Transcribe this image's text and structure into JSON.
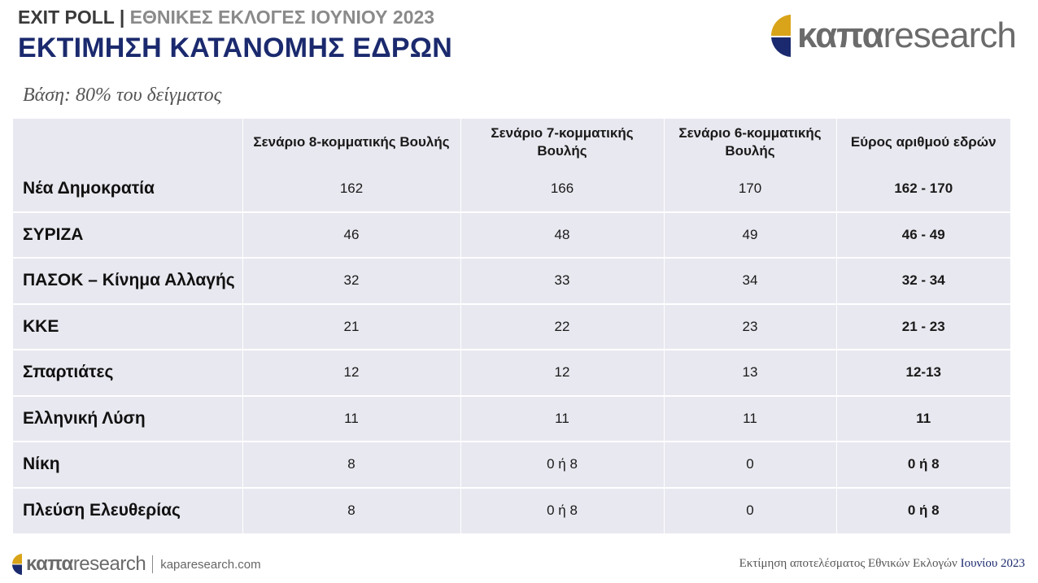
{
  "header": {
    "exit_poll": "EXIT POLL",
    "separator": "|",
    "subtitle": "ΕΘΝΙΚΕΣ ΕΚΛΟΓΕΣ ΙΟΥΝΙΟΥ 2023",
    "title": "ΕΚΤΙΜΗΣΗ ΚΑΤΑΝΟΜΗΣ ΕΔΡΩΝ"
  },
  "logo": {
    "bold": "καπα",
    "light": "research"
  },
  "base_note": "Βάση: 80% του δείγματος",
  "table": {
    "headers": [
      "",
      "Σενάριο 8-κομματικής Βουλής",
      "Σενάριο 7-κομματικής Βουλής",
      "Σενάριο 6-κομματικής Βουλής",
      "Εύρος αριθμού εδρών"
    ],
    "rows": [
      {
        "party": "Νέα Δημοκρατία",
        "s8": "162",
        "s7": "166",
        "s6": "170",
        "range": "162 - 170"
      },
      {
        "party": "ΣΥΡΙΖΑ",
        "s8": "46",
        "s7": "48",
        "s6": "49",
        "range": "46 - 49"
      },
      {
        "party": "ΠΑΣΟΚ – Κίνημα Αλλαγής",
        "s8": "32",
        "s7": "33",
        "s6": "34",
        "range": "32 - 34"
      },
      {
        "party": "ΚΚΕ",
        "s8": "21",
        "s7": "22",
        "s6": "23",
        "range": "21 - 23"
      },
      {
        "party": "Σπαρτιάτες",
        "s8": "12",
        "s7": "12",
        "s6": "13",
        "range": "12-13"
      },
      {
        "party": "Ελληνική Λύση",
        "s8": "11",
        "s7": "11",
        "s6": "11",
        "range": "11"
      },
      {
        "party": "Νίκη",
        "s8": "8",
        "s7": "0 ή 8",
        "s6": "0",
        "range": "0 ή 8"
      },
      {
        "party": "Πλεύση Ελευθερίας",
        "s8": "8",
        "s7": "0 ή 8",
        "s6": "0",
        "range": "0 ή 8"
      }
    ]
  },
  "footer": {
    "logo_bold": "καπα",
    "logo_light": "research",
    "separator": "|",
    "url": "kaparesearch.com",
    "caption": "Εκτίμηση αποτελέσματος Εθνικών Εκλογών",
    "caption_date": "Ιουνίου 2023"
  },
  "colors": {
    "navy": "#1b2a6e",
    "gold": "#d9a419",
    "gray_text": "#8a8a8a",
    "table_bg": "#e8e8f0"
  }
}
